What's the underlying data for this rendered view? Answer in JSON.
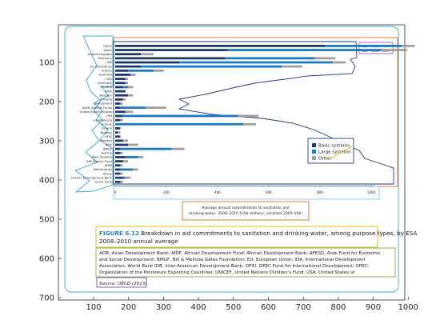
{
  "axes": {
    "x_ticks": [
      "100",
      "200",
      "300",
      "400",
      "500",
      "600",
      "700",
      "800",
      "900",
      "1000"
    ],
    "y_ticks": [
      "100",
      "200",
      "300",
      "400",
      "500",
      "600",
      "700"
    ]
  },
  "figure": {
    "bar_rows": [
      {
        "label": "Japan",
        "basic": 0.82,
        "large": 0.3,
        "other": 0.05
      },
      {
        "label": "Spain",
        "basic": 0.44,
        "large": 0.6,
        "other": 0.1
      },
      {
        "label": "United Kingdom",
        "basic": 0.1,
        "large": 0.0,
        "other": 0.05
      },
      {
        "label": "Germany",
        "basic": 0.43,
        "large": 0.35,
        "other": 0.08
      },
      {
        "label": "IDA",
        "basic": 0.25,
        "large": 0.6,
        "other": 0.05
      },
      {
        "label": "EU Institutions",
        "basic": 0.1,
        "large": 0.55,
        "other": 0.08
      },
      {
        "label": "France",
        "basic": 0.05,
        "large": 0.1,
        "other": 0.04
      },
      {
        "label": "Australia",
        "basic": 0.06,
        "large": 0.0,
        "other": 0.02
      },
      {
        "label": "USA",
        "basic": 0.04,
        "large": 0.0,
        "other": 0.01
      },
      {
        "label": "Denmark",
        "basic": 0.04,
        "large": 0.0,
        "other": 0.01
      },
      {
        "label": "Finland",
        "basic": 0.03,
        "large": 0.02,
        "other": 0.02
      },
      {
        "label": "AfDF",
        "basic": 0.04,
        "large": 0.0,
        "other": 0.0
      },
      {
        "label": "Belgium",
        "basic": 0.05,
        "large": 0.0,
        "other": 0.02
      },
      {
        "label": "Canada",
        "basic": 0.03,
        "large": 0.0,
        "other": 0.01
      },
      {
        "label": "Switzerland",
        "basic": 0.02,
        "large": 0.0,
        "other": 0.01
      },
      {
        "label": "AsDB Special Funds",
        "basic": 0.02,
        "large": 0.1,
        "other": 0.08
      },
      {
        "label": "United Arab Emirates",
        "basic": 0.04,
        "large": 0.0,
        "other": 0.03
      },
      {
        "label": "IDB",
        "basic": 0.03,
        "large": 0.45,
        "other": 0.08
      },
      {
        "label": "Luxembourg",
        "basic": 0.02,
        "large": 0.0,
        "other": 0.01
      },
      {
        "label": "Greece",
        "basic": 0.0,
        "large": 0.5,
        "other": 0.05
      },
      {
        "label": "Ireland",
        "basic": 0.02,
        "large": 0.0,
        "other": 0.0
      },
      {
        "label": "Norway",
        "basic": 0.01,
        "large": 0.0,
        "other": 0.01
      },
      {
        "label": "OFID",
        "basic": 0.02,
        "large": 0.0,
        "other": 0.0
      },
      {
        "label": "Sweden",
        "basic": 0.03,
        "large": 0.0,
        "other": 0.02
      },
      {
        "label": "Italy",
        "basic": 0.05,
        "large": 0.0,
        "other": 0.04
      },
      {
        "label": "BMGF",
        "basic": 0.02,
        "large": 0.2,
        "other": 0.05
      },
      {
        "label": "Austria",
        "basic": 0.02,
        "large": 0.0,
        "other": 0.01
      },
      {
        "label": "New Zealand",
        "basic": 0.04,
        "large": 0.05,
        "other": 0.02
      },
      {
        "label": "IDB Special Fund",
        "basic": 0.03,
        "large": 0.0,
        "other": 0.02
      },
      {
        "label": "AfDB",
        "basic": 0.02,
        "large": 0.0,
        "other": 0.01
      },
      {
        "label": "Netherlands",
        "basic": 0.02,
        "large": 0.05,
        "other": 0.02
      },
      {
        "label": "Korea",
        "basic": 0.02,
        "large": 0.0,
        "other": 0.01
      },
      {
        "label": "Islamic Development Bank",
        "basic": 0.03,
        "large": 0.01,
        "other": 0.02
      },
      {
        "label": "Isome Fund",
        "basic": 0.02,
        "large": 0.0,
        "other": 0.01
      }
    ],
    "x_ticks": [
      "0",
      "200",
      "400",
      "600",
      "800",
      "1000"
    ],
    "x_axis_label": "Average annual commitments to sanitation and drinking-water, 2008–2010 (US$ millions, constant 2009 US$)",
    "legend": [
      "Basic systems",
      "Large systems",
      "Other"
    ],
    "top_legend": [
      "Basic",
      "Large",
      "Other"
    ],
    "caption_prefix": "FIGURE 6.12",
    "caption_text": " Breakdown in aid commitments to sanitation and drinking-water, among purpose types, by ESA 2008–2010 annual average",
    "abbreviations": "ADB, Asian Development Bank; AfDF, African Development Fund; African Development Bank; AFESD, Arab Fund for Economic and Social Development; BMGF, Bill & Melinda Gates Foundation; EU, European Union; IDA, International Development Association, World Bank IDB, Inter-American Development Bank; OFID, OPEC Fund for International Development; OPEC, Organization of the Petroleum Exporting Countries; UNICEF, United Nations Children's Fund; USA, United States of America.",
    "source": "Source: OECD (2013)"
  },
  "colors": {
    "basic": "#1f3a66",
    "large": "#1e7bbf",
    "other": "#a89c9a",
    "caption_blue": "#2a86c8",
    "outline_cyan": "#39a8d8",
    "outline_orange": "#e06a2c",
    "outline_navy": "#1f3a8a",
    "outline_yellow": "#e9b200",
    "outline_green": "#7bb04a",
    "outline_purple": "#8b49b8",
    "outline_lightblue": "#86c6ea",
    "axes_frame": "#262626"
  }
}
